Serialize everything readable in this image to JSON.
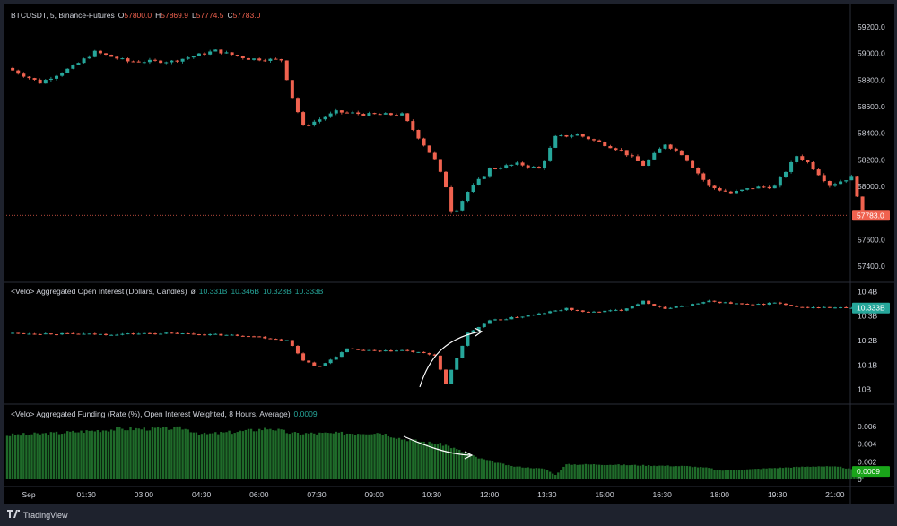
{
  "colors": {
    "up": "#26a69a",
    "down": "#f0624f",
    "funding_bar": "#1f6b2a",
    "price_line": "#f0624f",
    "oi_badge": "#26a69a",
    "funding_badge": "#1aa51a"
  },
  "price_panel": {
    "legend": {
      "symbol": "BTCUSDT, 5, Binance-Futures",
      "o_label": "O",
      "o_value": "57800.0",
      "h_label": "H",
      "h_value": "57869.9",
      "l_label": "L",
      "l_value": "57774.5",
      "c_label": "C",
      "c_value": "57783.0"
    },
    "last_price_label": "57783.0"
  },
  "oi_panel": {
    "legend": {
      "title": "<Velo> Aggregated Open Interest (Dollars, Candles)",
      "symbol": "ø",
      "v1": "10.331B",
      "v2": "10.346B",
      "v3": "10.328B",
      "v4": "10.333B"
    },
    "last_value_label": "10.333B"
  },
  "funding_panel": {
    "legend": {
      "title": "<Velo> Aggregated Funding (Rate (%), Open Interest Weighted, 8 Hours, Average)",
      "value": "0.0009"
    },
    "last_value_label": "0.0009"
  },
  "branding": {
    "name": "TradingView",
    "icon": "tradingview-logo-icon"
  },
  "chart_data": [
    {
      "type": "candlestick",
      "title": "BTCUSDT, 5, Binance-Futures",
      "y_ticks": [
        "59200.0",
        "59000.0",
        "58800.0",
        "58600.0",
        "58400.0",
        "58200.0",
        "58000.0",
        "57600.0",
        "57400.0"
      ],
      "ylim": [
        57300,
        59300
      ],
      "x_ticks": [
        "Sep",
        "01:30",
        "03:00",
        "04:30",
        "06:00",
        "07:30",
        "09:00",
        "10:30",
        "12:00",
        "13:30",
        "15:00",
        "16:30",
        "18:00",
        "19:30",
        "21:00"
      ],
      "close_path": [
        [
          0,
          58890
        ],
        [
          1.5,
          58780
        ],
        [
          3,
          58900
        ],
        [
          4,
          59010
        ],
        [
          5.5,
          58940
        ],
        [
          7.5,
          58940
        ],
        [
          9.5,
          59020
        ],
        [
          11,
          58960
        ],
        [
          12.5,
          58950
        ],
        [
          13,
          58670
        ],
        [
          13.5,
          58450
        ],
        [
          15,
          58560
        ],
        [
          16.5,
          58540
        ],
        [
          18,
          58540
        ],
        [
          19.5,
          58200
        ],
        [
          20,
          58000
        ],
        [
          20.3,
          57780
        ],
        [
          21,
          57960
        ],
        [
          22,
          58130
        ],
        [
          23.3,
          58170
        ],
        [
          24.3,
          58130
        ],
        [
          25,
          58370
        ],
        [
          26,
          58390
        ],
        [
          28,
          58270
        ],
        [
          29,
          58160
        ],
        [
          30,
          58320
        ],
        [
          30.8,
          58240
        ],
        [
          32,
          58000
        ],
        [
          33,
          57950
        ],
        [
          34,
          57990
        ],
        [
          35,
          58000
        ],
        [
          36,
          58230
        ],
        [
          36.5,
          58180
        ],
        [
          37.5,
          58010
        ],
        [
          38.5,
          58070
        ],
        [
          39,
          57800
        ]
      ],
      "last_close": 57783.0,
      "grid": false
    },
    {
      "type": "candlestick",
      "title": "<Velo> Aggregated Open Interest (Dollars, Candles)",
      "y_ticks": [
        "10.4B",
        "10.3B",
        "10.2B",
        "10.1B",
        "10B"
      ],
      "ylim": [
        9.98,
        10.42
      ],
      "close_path": [
        [
          0,
          10.23
        ],
        [
          4.5,
          10.225
        ],
        [
          7,
          10.23
        ],
        [
          9,
          10.225
        ],
        [
          11,
          10.22
        ],
        [
          12.8,
          10.2
        ],
        [
          13.5,
          10.12
        ],
        [
          14.2,
          10.09
        ],
        [
          15.5,
          10.165
        ],
        [
          17,
          10.155
        ],
        [
          18,
          10.16
        ],
        [
          19.5,
          10.14
        ],
        [
          20,
          10.02
        ],
        [
          20.3,
          10.09
        ],
        [
          21,
          10.23
        ],
        [
          22,
          10.28
        ],
        [
          24,
          10.305
        ],
        [
          25.5,
          10.33
        ],
        [
          26.5,
          10.315
        ],
        [
          28,
          10.325
        ],
        [
          29,
          10.36
        ],
        [
          30,
          10.33
        ],
        [
          31,
          10.345
        ],
        [
          32,
          10.36
        ],
        [
          34,
          10.345
        ],
        [
          35,
          10.355
        ],
        [
          36,
          10.335
        ],
        [
          37,
          10.335
        ],
        [
          38.5,
          10.333
        ]
      ],
      "last_close": 10.333,
      "annotations": [
        "arrow-up-curve"
      ]
    },
    {
      "type": "bar",
      "title": "<Velo> Aggregated Funding (Rate (%), Open Interest Weighted, 8 Hours, Average)",
      "y_ticks": [
        "0.006",
        "0.004",
        "0.002",
        "0"
      ],
      "ylim": [
        0,
        0.0066
      ],
      "value_path": [
        [
          0,
          0.005
        ],
        [
          2,
          0.0052
        ],
        [
          5,
          0.0057
        ],
        [
          8,
          0.0058
        ],
        [
          9,
          0.0051
        ],
        [
          10.5,
          0.0054
        ],
        [
          12,
          0.0058
        ],
        [
          13,
          0.0052
        ],
        [
          15,
          0.0052
        ],
        [
          17,
          0.0053
        ],
        [
          18,
          0.0046
        ],
        [
          20,
          0.0039
        ],
        [
          21.5,
          0.0024
        ],
        [
          23,
          0.0015
        ],
        [
          24.5,
          0.0012
        ],
        [
          25,
          0.0005
        ],
        [
          25.5,
          0.0017
        ],
        [
          27,
          0.0017
        ],
        [
          29,
          0.0016
        ],
        [
          31,
          0.0015
        ],
        [
          32,
          0.0013
        ],
        [
          32.5,
          0.001
        ],
        [
          33.5,
          0.0011
        ],
        [
          35,
          0.0013
        ],
        [
          37,
          0.0015
        ],
        [
          38,
          0.0014
        ],
        [
          39,
          0.0009
        ]
      ],
      "last_value": 0.0009,
      "annotations": [
        "arrow-down-curve"
      ]
    }
  ]
}
